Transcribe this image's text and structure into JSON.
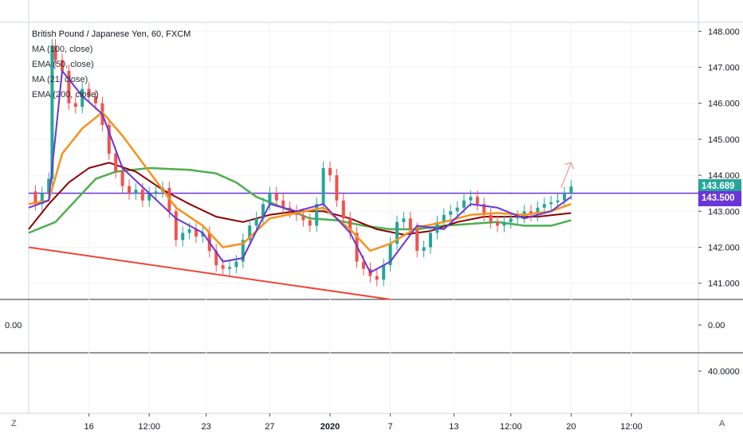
{
  "legend": {
    "title": "British Pound / Japanese Yen, 60, FXCM",
    "items": [
      "MA (100, close)",
      "EMA (50, close)",
      "MA (21, close)",
      "EMA (200, close)"
    ]
  },
  "price_badges": {
    "last": {
      "label": "143.689",
      "value": 143.689,
      "color": "#26a69a"
    },
    "level": {
      "label": "143.500",
      "value": 143.5,
      "color": "#6a35d9"
    }
  },
  "sub_panels": {
    "panel1": {
      "left_label": "0.00",
      "right_label": "0.00"
    },
    "panel2": {
      "right_label": "40.0000"
    }
  },
  "buttons": {
    "left": "Z",
    "right": "A"
  },
  "colors": {
    "up": "#26a69a",
    "down": "#ef5350",
    "ma100": "#6a35d9",
    "ema50": "#f7931a",
    "ma21": "#8b0000",
    "ema200": "#4caf50",
    "level": "#6a35d9",
    "trendline": "#f44336",
    "arrow": "#f4a6a6"
  },
  "chart_data": {
    "type": "line",
    "symbol": "GBPJPY",
    "y_ticks": [
      141.0,
      142.0,
      143.0,
      144.0,
      145.0,
      146.0,
      147.0,
      148.0
    ],
    "y_tick_labels": [
      "141.000",
      "142.000",
      "143.000",
      "144.000",
      "145.000",
      "146.000",
      "147.000",
      "148.000"
    ],
    "ylim": [
      140.55,
      148.25
    ],
    "x_ticks": [
      0.5,
      9.5,
      18,
      26.5,
      36,
      45,
      54,
      63.5,
      72,
      81,
      90,
      99
    ],
    "x_tick_labels": [
      "16",
      "12:00",
      "23",
      "27",
      "2020",
      "7",
      "13",
      "12:00",
      "20",
      "12:00"
    ],
    "x_tick_positions": [
      9,
      18,
      26.5,
      36,
      45,
      54,
      63.5,
      72,
      81,
      90
    ],
    "xlim": [
      0,
      100
    ],
    "close": [
      [
        0,
        143.55
      ],
      [
        1,
        143.2
      ],
      [
        2,
        143.5
      ],
      [
        3,
        143.9
      ],
      [
        3.5,
        147.6
      ],
      [
        4,
        147.2
      ],
      [
        5,
        146.9
      ],
      [
        6,
        146.0
      ],
      [
        7,
        145.9
      ],
      [
        8,
        146.4
      ],
      [
        9,
        146.2
      ],
      [
        10,
        146.0
      ],
      [
        11,
        145.4
      ],
      [
        12,
        144.6
      ],
      [
        13,
        144.1
      ],
      [
        14,
        143.7
      ],
      [
        15,
        143.5
      ],
      [
        16,
        143.6
      ],
      [
        17,
        143.3
      ],
      [
        18,
        143.5
      ],
      [
        19,
        143.55
      ],
      [
        20,
        143.65
      ],
      [
        21,
        143.0
      ],
      [
        22,
        142.2
      ],
      [
        23,
        142.4
      ],
      [
        24,
        142.5
      ],
      [
        25,
        142.3
      ],
      [
        26,
        142.4
      ],
      [
        27,
        141.9
      ],
      [
        28,
        141.5
      ],
      [
        29,
        141.4
      ],
      [
        30,
        141.45
      ],
      [
        31,
        141.6
      ],
      [
        32,
        142.2
      ],
      [
        33,
        142.6
      ],
      [
        34,
        142.8
      ],
      [
        35,
        143.2
      ],
      [
        36,
        143.5
      ],
      [
        37,
        143.3
      ],
      [
        38,
        143.1
      ],
      [
        39,
        143.0
      ],
      [
        40,
        142.9
      ],
      [
        41,
        142.75
      ],
      [
        42,
        142.6
      ],
      [
        43,
        143.2
      ],
      [
        44,
        144.2
      ],
      [
        45,
        144.0
      ],
      [
        46,
        143.3
      ],
      [
        47,
        142.8
      ],
      [
        48,
        142.4
      ],
      [
        49,
        141.6
      ],
      [
        50,
        141.4
      ],
      [
        51,
        141.2
      ],
      [
        52,
        141.1
      ],
      [
        53,
        141.5
      ],
      [
        54,
        142.1
      ],
      [
        55,
        142.7
      ],
      [
        56,
        142.8
      ],
      [
        57,
        142.5
      ],
      [
        58,
        141.9
      ],
      [
        59,
        142.0
      ],
      [
        60,
        142.4
      ],
      [
        61,
        142.7
      ],
      [
        62,
        142.9
      ],
      [
        63,
        143.0
      ],
      [
        64,
        143.1
      ],
      [
        65,
        143.3
      ],
      [
        66,
        143.4
      ],
      [
        67,
        143.2
      ],
      [
        68,
        142.9
      ],
      [
        69,
        142.7
      ],
      [
        70,
        142.6
      ],
      [
        71,
        142.7
      ],
      [
        72,
        142.8
      ],
      [
        73,
        142.85
      ],
      [
        74,
        143.0
      ],
      [
        75,
        142.9
      ],
      [
        76,
        143.1
      ],
      [
        77,
        143.2
      ],
      [
        78,
        143.25
      ],
      [
        79,
        143.3
      ],
      [
        80,
        143.5
      ],
      [
        81,
        143.689
      ]
    ],
    "series": [
      {
        "name": "MA (100, close)",
        "color": "#6a35d9",
        "points": [
          [
            0,
            143.1
          ],
          [
            3,
            143.3
          ],
          [
            5,
            146.9
          ],
          [
            8,
            146.2
          ],
          [
            11,
            145.7
          ],
          [
            14,
            144.2
          ],
          [
            18,
            143.5
          ],
          [
            22,
            142.8
          ],
          [
            26,
            142.4
          ],
          [
            29,
            141.6
          ],
          [
            32,
            141.7
          ],
          [
            36,
            143.2
          ],
          [
            40,
            143.0
          ],
          [
            44,
            143.2
          ],
          [
            48,
            142.4
          ],
          [
            51,
            141.3
          ],
          [
            54,
            141.6
          ],
          [
            58,
            142.6
          ],
          [
            62,
            142.5
          ],
          [
            66,
            143.2
          ],
          [
            70,
            143.1
          ],
          [
            74,
            142.8
          ],
          [
            78,
            143.0
          ],
          [
            81,
            143.4
          ]
        ]
      },
      {
        "name": "EMA (50, close)",
        "color": "#f7931a",
        "points": [
          [
            0,
            143.2
          ],
          [
            3,
            143.3
          ],
          [
            5,
            144.6
          ],
          [
            8,
            145.3
          ],
          [
            11,
            145.75
          ],
          [
            14,
            145.1
          ],
          [
            18,
            144.1
          ],
          [
            22,
            143.1
          ],
          [
            26,
            142.6
          ],
          [
            29,
            142.0
          ],
          [
            32,
            142.1
          ],
          [
            36,
            142.8
          ],
          [
            40,
            142.95
          ],
          [
            44,
            143.1
          ],
          [
            48,
            142.5
          ],
          [
            51,
            141.9
          ],
          [
            54,
            142.1
          ],
          [
            58,
            142.55
          ],
          [
            62,
            142.7
          ],
          [
            66,
            142.9
          ],
          [
            70,
            142.95
          ],
          [
            74,
            142.9
          ],
          [
            78,
            143.0
          ],
          [
            81,
            143.2
          ]
        ]
      },
      {
        "name": "MA (21, close)",
        "color": "#8b0000",
        "points": [
          [
            0,
            142.5
          ],
          [
            3,
            143.2
          ],
          [
            6,
            143.8
          ],
          [
            9,
            144.2
          ],
          [
            12,
            144.35
          ],
          [
            16,
            144.1
          ],
          [
            20,
            143.6
          ],
          [
            24,
            143.2
          ],
          [
            28,
            142.85
          ],
          [
            32,
            142.7
          ],
          [
            36,
            142.9
          ],
          [
            40,
            143.0
          ],
          [
            44,
            143.0
          ],
          [
            48,
            142.8
          ],
          [
            52,
            142.5
          ],
          [
            56,
            142.35
          ],
          [
            60,
            142.45
          ],
          [
            64,
            142.7
          ],
          [
            68,
            142.85
          ],
          [
            72,
            142.85
          ],
          [
            76,
            142.85
          ],
          [
            81,
            142.95
          ]
        ]
      },
      {
        "name": "EMA (200, close)",
        "color": "#4caf50",
        "points": [
          [
            0,
            142.4
          ],
          [
            4,
            142.7
          ],
          [
            7,
            143.3
          ],
          [
            10,
            143.9
          ],
          [
            13,
            144.1
          ],
          [
            18,
            144.2
          ],
          [
            24,
            144.15
          ],
          [
            28,
            144.05
          ],
          [
            31,
            143.8
          ],
          [
            34,
            143.4
          ],
          [
            38,
            143.1
          ],
          [
            42,
            142.8
          ],
          [
            46,
            142.75
          ],
          [
            50,
            142.6
          ],
          [
            54,
            142.5
          ],
          [
            58,
            142.5
          ],
          [
            62,
            142.6
          ],
          [
            66,
            142.65
          ],
          [
            70,
            142.7
          ],
          [
            74,
            142.6
          ],
          [
            78,
            142.6
          ],
          [
            81,
            142.75
          ]
        ]
      }
    ],
    "horizontal_line": 143.5,
    "trendline": [
      [
        0,
        142.0
      ],
      [
        54,
        140.55
      ]
    ],
    "projection_arrow": [
      [
        79.5,
        143.65
      ],
      [
        81,
        144.35
      ]
    ]
  }
}
